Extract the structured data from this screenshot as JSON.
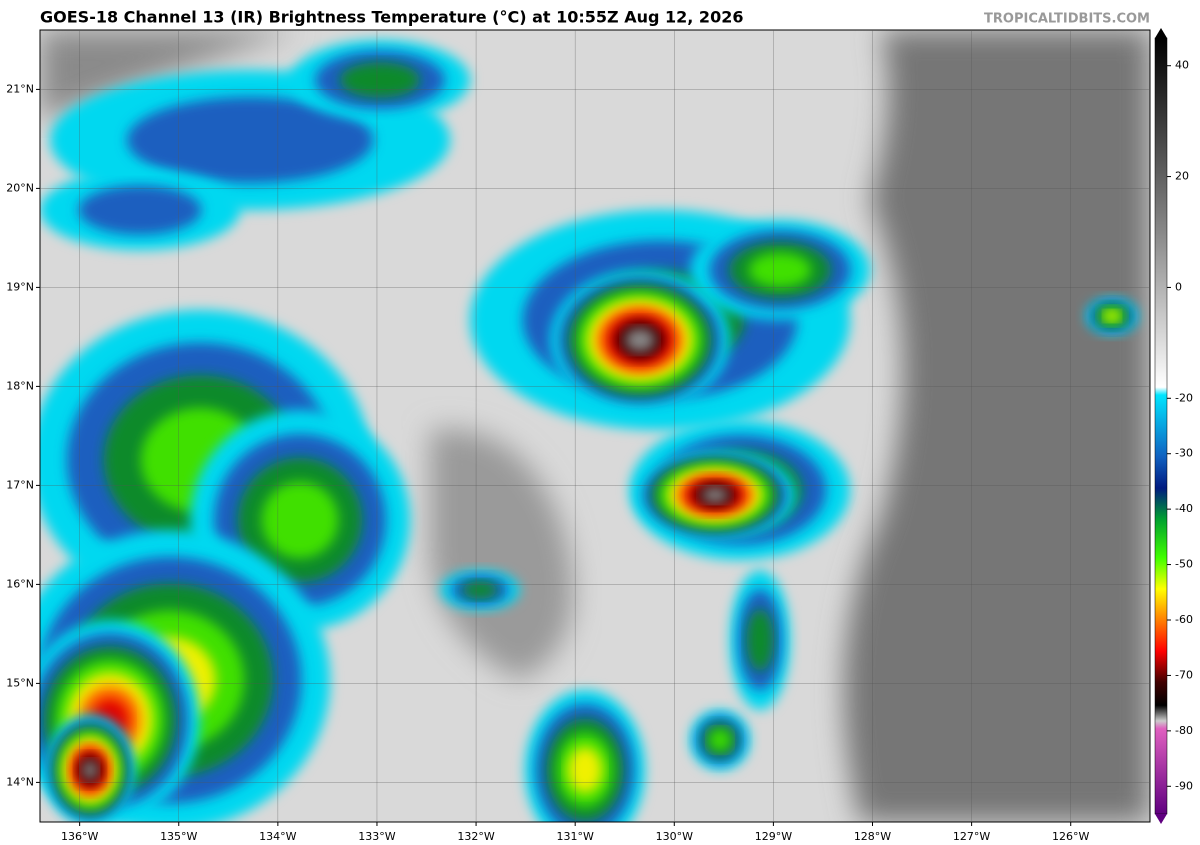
{
  "map": {
    "title": "GOES-18 Channel 13 (IR) Brightness Temperature (°C) at 10:55Z Aug 12, 2026",
    "credit": "TROPICALTIDBITS.COM",
    "xlim": [
      -136.4,
      -125.2
    ],
    "ylim": [
      13.6,
      21.6
    ],
    "xticks": [
      {
        "value": -136,
        "label": "136°W"
      },
      {
        "value": -135,
        "label": "135°W"
      },
      {
        "value": -134,
        "label": "134°W"
      },
      {
        "value": -133,
        "label": "133°W"
      },
      {
        "value": -132,
        "label": "132°W"
      },
      {
        "value": -131,
        "label": "131°W"
      },
      {
        "value": -130,
        "label": "130°W"
      },
      {
        "value": -129,
        "label": "129°W"
      },
      {
        "value": -128,
        "label": "128°W"
      },
      {
        "value": -127,
        "label": "127°W"
      },
      {
        "value": -126,
        "label": "126°W"
      }
    ],
    "yticks": [
      {
        "value": 14,
        "label": "14°N"
      },
      {
        "value": 15,
        "label": "15°N"
      },
      {
        "value": 16,
        "label": "16°N"
      },
      {
        "value": 17,
        "label": "17°N"
      },
      {
        "value": 18,
        "label": "18°N"
      },
      {
        "value": 19,
        "label": "19°N"
      },
      {
        "value": 20,
        "label": "20°N"
      },
      {
        "value": 21,
        "label": "21°N"
      }
    ],
    "colorbar": {
      "ylim": [
        -95,
        45
      ],
      "ticks": [
        40,
        20,
        0,
        -20,
        -30,
        -40,
        -50,
        -60,
        -70,
        -80,
        -90
      ]
    }
  }
}
